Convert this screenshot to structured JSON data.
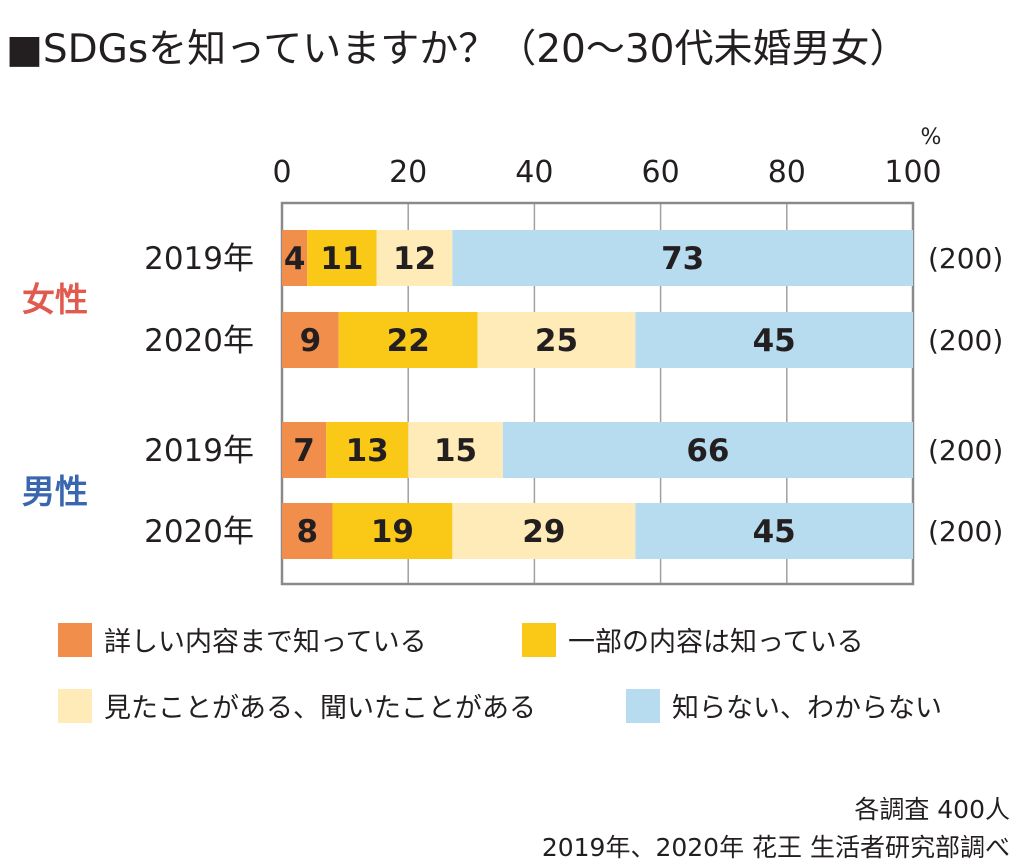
{
  "title": "■SDGsを知っていますか？（20〜30代未婚男女）",
  "chart_data": {
    "type": "bar",
    "orientation": "horizontal",
    "stacked": true,
    "xlim": [
      0,
      100
    ],
    "x_ticks": [
      "0",
      "20",
      "40",
      "60",
      "80",
      "100"
    ],
    "unit_label": "%",
    "grid": true,
    "groups": [
      {
        "label": "女性",
        "color": "#e05a4e"
      },
      {
        "label": "男性",
        "color": "#3a66b0"
      }
    ],
    "rows": [
      {
        "group": 0,
        "year": "2019年",
        "values": [
          4,
          11,
          12,
          73
        ],
        "n": "(200)"
      },
      {
        "group": 0,
        "year": "2020年",
        "values": [
          9,
          22,
          25,
          45
        ],
        "n": "(200)"
      },
      {
        "group": 1,
        "year": "2019年",
        "values": [
          7,
          13,
          15,
          66
        ],
        "n": "(200)"
      },
      {
        "group": 1,
        "year": "2020年",
        "values": [
          8,
          19,
          29,
          45
        ],
        "n": "(200)"
      }
    ],
    "series": [
      {
        "name": "詳しい内容まで知っている",
        "color": "#f28e4b"
      },
      {
        "name": "一部の内容は知っている",
        "color": "#fac817"
      },
      {
        "name": "見たことがある、聞いたことがある",
        "color": "#feebb8"
      },
      {
        "name": "知らない、わからない",
        "color": "#b8dcef"
      }
    ],
    "legend_position": "bottom"
  },
  "footer": {
    "line1": "各調査 400人",
    "line2": "2019年、2020年 花王 生活者研究部調べ"
  }
}
